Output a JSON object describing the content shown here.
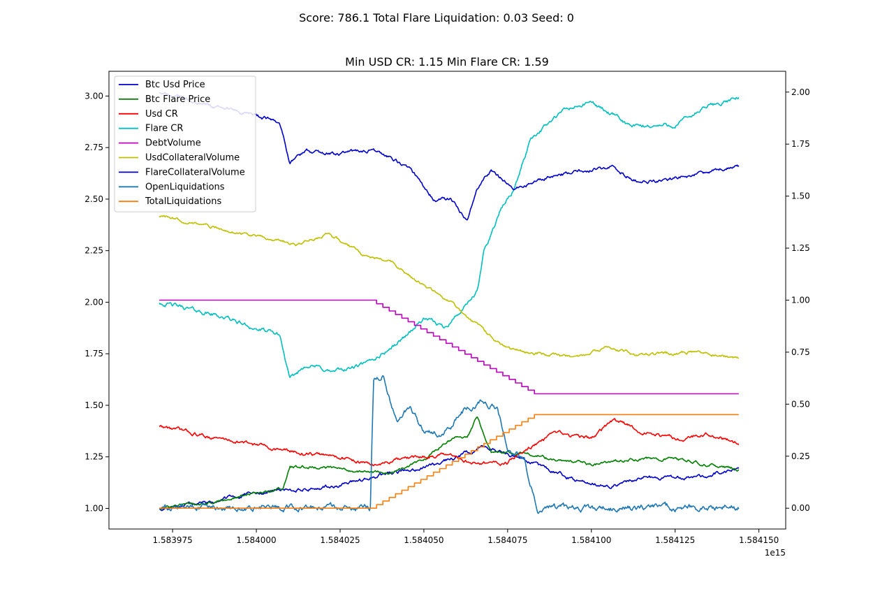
{
  "figure": {
    "suptitle": "Score: 786.1 Total Flare Liquidation: 0.03 Seed: 0"
  },
  "chart_data": {
    "type": "line",
    "title": "Min USD CR: 1.15 Min Flare CR: 1.59",
    "xlabel": "",
    "ylabel": "",
    "x_offset_text": "1e15",
    "x_range": [
      1.583971,
      1.584144
    ],
    "xlim": [
      1.583956,
      1.584158
    ],
    "xticks": [
      1.583975,
      1.584,
      1.584025,
      1.58405,
      1.584075,
      1.5841,
      1.584125,
      1.58415
    ],
    "xtick_labels": [
      "1.583975",
      "1.584000",
      "1.584025",
      "1.584050",
      "1.584075",
      "1.584100",
      "1.584125",
      "1.584150"
    ],
    "ylim_left": [
      0.9,
      3.12
    ],
    "yticks_left": [
      1.0,
      1.25,
      1.5,
      1.75,
      2.0,
      2.25,
      2.5,
      2.75,
      3.0
    ],
    "ytick_labels_left": [
      "1.00",
      "1.25",
      "1.50",
      "1.75",
      "2.00",
      "2.25",
      "2.50",
      "2.75",
      "3.00"
    ],
    "ylim_right": [
      -0.1,
      2.1
    ],
    "yticks_right": [
      0.0,
      0.25,
      0.5,
      0.75,
      1.0,
      1.25,
      1.5,
      1.75,
      2.0
    ],
    "ytick_labels_right": [
      "0.00",
      "0.25",
      "0.50",
      "0.75",
      "1.00",
      "1.25",
      "1.50",
      "1.75",
      "2.00"
    ],
    "grid": false,
    "legend_position": "upper-left",
    "series": [
      {
        "name": "Btc Usd Price",
        "color": "#0000cc",
        "axis": "left",
        "noise": 0.012,
        "seed": 11,
        "points": [
          [
            1.583971,
            1.0
          ],
          [
            1.583985,
            1.03
          ],
          [
            1.583995,
            1.06
          ],
          [
            1.584008,
            1.09
          ],
          [
            1.58402,
            1.1
          ],
          [
            1.58403,
            1.13
          ],
          [
            1.58404,
            1.17
          ],
          [
            1.58405,
            1.2
          ],
          [
            1.58406,
            1.25
          ],
          [
            1.584067,
            1.3
          ],
          [
            1.584075,
            1.27
          ],
          [
            1.584082,
            1.22
          ],
          [
            1.58409,
            1.17
          ],
          [
            1.584097,
            1.13
          ],
          [
            1.584106,
            1.11
          ],
          [
            1.584115,
            1.15
          ],
          [
            1.584125,
            1.15
          ],
          [
            1.584135,
            1.16
          ],
          [
            1.584144,
            1.19
          ]
        ]
      },
      {
        "name": "Btc Flare Price",
        "color": "#008000",
        "axis": "left",
        "noise": 0.01,
        "seed": 23,
        "points": [
          [
            1.583971,
            1.0
          ],
          [
            1.58399,
            1.04
          ],
          [
            1.584008,
            1.1
          ],
          [
            1.58401,
            1.2
          ],
          [
            1.58402,
            1.2
          ],
          [
            1.58403,
            1.18
          ],
          [
            1.58404,
            1.17
          ],
          [
            1.58405,
            1.23
          ],
          [
            1.584057,
            1.33
          ],
          [
            1.584063,
            1.35
          ],
          [
            1.584066,
            1.45
          ],
          [
            1.58407,
            1.28
          ],
          [
            1.58408,
            1.27
          ],
          [
            1.58409,
            1.23
          ],
          [
            1.5841,
            1.21
          ],
          [
            1.584112,
            1.24
          ],
          [
            1.584125,
            1.24
          ],
          [
            1.584135,
            1.21
          ],
          [
            1.584144,
            1.19
          ]
        ]
      },
      {
        "name": "Usd CR",
        "color": "#ff0000",
        "axis": "left",
        "noise": 0.012,
        "seed": 37,
        "points": [
          [
            1.583971,
            1.4
          ],
          [
            1.583985,
            1.35
          ],
          [
            1.584,
            1.31
          ],
          [
            1.584012,
            1.27
          ],
          [
            1.584025,
            1.25
          ],
          [
            1.584035,
            1.21
          ],
          [
            1.584045,
            1.24
          ],
          [
            1.584055,
            1.26
          ],
          [
            1.584065,
            1.22
          ],
          [
            1.584075,
            1.22
          ],
          [
            1.584082,
            1.3
          ],
          [
            1.58409,
            1.36
          ],
          [
            1.5841,
            1.34
          ],
          [
            1.584107,
            1.43
          ],
          [
            1.584115,
            1.37
          ],
          [
            1.584125,
            1.34
          ],
          [
            1.584135,
            1.36
          ],
          [
            1.584144,
            1.32
          ]
        ]
      },
      {
        "name": "Flare CR",
        "color": "#00bfbf",
        "axis": "left",
        "noise": 0.014,
        "seed": 41,
        "points": [
          [
            1.583971,
            2.0
          ],
          [
            1.58399,
            1.93
          ],
          [
            1.584,
            1.87
          ],
          [
            1.584007,
            1.84
          ],
          [
            1.58401,
            1.62
          ],
          [
            1.584015,
            1.7
          ],
          [
            1.584023,
            1.66
          ],
          [
            1.584033,
            1.7
          ],
          [
            1.584042,
            1.8
          ],
          [
            1.58405,
            1.92
          ],
          [
            1.584056,
            1.88
          ],
          [
            1.584062,
            1.97
          ],
          [
            1.584066,
            2.05
          ],
          [
            1.584068,
            2.25
          ],
          [
            1.584073,
            2.45
          ],
          [
            1.584077,
            2.55
          ],
          [
            1.584082,
            2.8
          ],
          [
            1.584092,
            2.93
          ],
          [
            1.5841,
            2.97
          ],
          [
            1.584112,
            2.85
          ],
          [
            1.584125,
            2.86
          ],
          [
            1.584135,
            2.95
          ],
          [
            1.584144,
            2.99
          ]
        ]
      },
      {
        "name": "DebtVolume",
        "color": "#bf00bf",
        "axis": "right",
        "noise": 0,
        "seed": 0,
        "steps": 26,
        "points": [
          [
            1.583971,
            1.0
          ],
          [
            1.584034,
            1.0
          ],
          [
            1.584083,
            0.55
          ],
          [
            1.584144,
            0.55
          ]
        ]
      },
      {
        "name": "UsdCollateralVolume",
        "color": "#bfbf00",
        "axis": "left",
        "noise": 0.01,
        "seed": 53,
        "points": [
          [
            1.583971,
            2.42
          ],
          [
            1.583985,
            2.37
          ],
          [
            1.584,
            2.32
          ],
          [
            1.584012,
            2.28
          ],
          [
            1.584022,
            2.33
          ],
          [
            1.584033,
            2.22
          ],
          [
            1.58404,
            2.2
          ],
          [
            1.584048,
            2.1
          ],
          [
            1.584058,
            2.0
          ],
          [
            1.584065,
            1.9
          ],
          [
            1.584075,
            1.77
          ],
          [
            1.584085,
            1.75
          ],
          [
            1.584095,
            1.73
          ],
          [
            1.584105,
            1.78
          ],
          [
            1.584115,
            1.74
          ],
          [
            1.58413,
            1.76
          ],
          [
            1.584144,
            1.73
          ]
        ]
      },
      {
        "name": "FlareCollateralVolume",
        "color": "#0000cc",
        "axis": "left",
        "noise": 0.012,
        "seed": 67,
        "points": [
          [
            1.583971,
            3.02
          ],
          [
            1.583985,
            2.96
          ],
          [
            1.583998,
            2.91
          ],
          [
            1.584007,
            2.87
          ],
          [
            1.58401,
            2.68
          ],
          [
            1.584015,
            2.73
          ],
          [
            1.584025,
            2.72
          ],
          [
            1.584034,
            2.74
          ],
          [
            1.584045,
            2.66
          ],
          [
            1.584053,
            2.5
          ],
          [
            1.584058,
            2.5
          ],
          [
            1.584063,
            2.4
          ],
          [
            1.584066,
            2.55
          ],
          [
            1.58407,
            2.64
          ],
          [
            1.584077,
            2.55
          ],
          [
            1.584085,
            2.6
          ],
          [
            1.584095,
            2.63
          ],
          [
            1.584106,
            2.66
          ],
          [
            1.584115,
            2.58
          ],
          [
            1.584125,
            2.6
          ],
          [
            1.584135,
            2.63
          ],
          [
            1.584144,
            2.66
          ]
        ]
      },
      {
        "name": "OpenLiquidations",
        "color": "#1f77b4",
        "axis": "right",
        "noise": 0.02,
        "seed": 79,
        "points": [
          [
            1.583971,
            0.0
          ],
          [
            1.584034,
            0.0
          ],
          [
            1.584035,
            0.62
          ],
          [
            1.584038,
            0.65
          ],
          [
            1.584042,
            0.4
          ],
          [
            1.584046,
            0.5
          ],
          [
            1.58405,
            0.38
          ],
          [
            1.584056,
            0.35
          ],
          [
            1.584062,
            0.47
          ],
          [
            1.584067,
            0.52
          ],
          [
            1.584072,
            0.48
          ],
          [
            1.584075,
            0.28
          ],
          [
            1.58408,
            0.25
          ],
          [
            1.584083,
            0.05
          ],
          [
            1.584084,
            0.0
          ],
          [
            1.584144,
            0.0
          ]
        ]
      },
      {
        "name": "TotalLiquidations",
        "color": "#ff7f0e",
        "axis": "right",
        "noise": 0,
        "seed": 0,
        "steps": 26,
        "points": [
          [
            1.583971,
            0.0
          ],
          [
            1.584034,
            0.0
          ],
          [
            1.584083,
            0.45
          ],
          [
            1.584144,
            0.45
          ]
        ]
      }
    ]
  }
}
